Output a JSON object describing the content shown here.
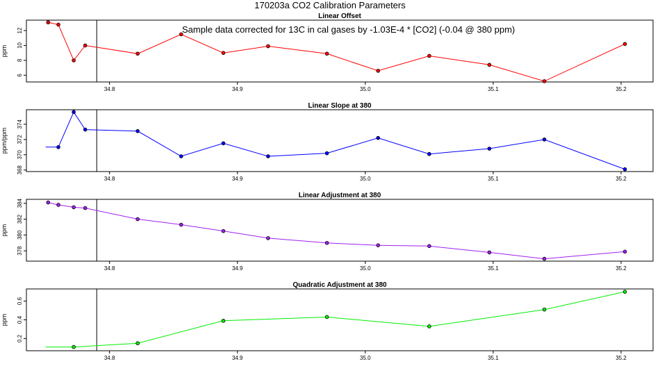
{
  "figure_title": "170203a   CO2 Calibration Parameters",
  "chart_data": [
    {
      "type": "line",
      "title": "Linear Offset",
      "ylabel": "ppm",
      "annotation": "Sample data corrected for 13C in cal gases by -1.03E-4 * [CO2] (-0.04 @ 380 ppm)",
      "color": "#ff0000",
      "xlim": [
        34.735,
        35.225
      ],
      "ylim": [
        5.1,
        13.4
      ],
      "x_ticks": [
        34.8,
        34.9,
        35.0,
        35.1,
        35.2
      ],
      "x_tick_labels": [
        "34.8",
        "34.9",
        "35.0",
        "35.1",
        "35.2"
      ],
      "y_ticks": [
        6,
        8,
        10,
        12
      ],
      "y_tick_labels": [
        "6",
        "8",
        "10",
        "12"
      ],
      "vline": 34.79,
      "x": [
        34.752,
        34.76,
        34.772,
        34.781,
        34.822,
        34.856,
        34.889,
        34.924,
        34.97,
        35.01,
        35.05,
        35.097,
        35.14,
        35.203
      ],
      "y": [
        13.1,
        12.8,
        8.0,
        10.0,
        8.9,
        11.5,
        9.0,
        9.9,
        8.9,
        6.6,
        8.6,
        7.4,
        5.2,
        10.2
      ],
      "marker": [
        true,
        true,
        true,
        true,
        true,
        true,
        true,
        true,
        true,
        true,
        true,
        true,
        true,
        true
      ]
    },
    {
      "type": "line",
      "title": "Linear Slope at 380",
      "ylabel": "ppm/ppm",
      "color": "#0000ff",
      "xlim": [
        34.735,
        35.225
      ],
      "ylim": [
        367.8,
        375.9
      ],
      "x_ticks": [
        34.8,
        34.9,
        35.0,
        35.1,
        35.2
      ],
      "x_tick_labels": [
        "34.8",
        "34.9",
        "35.0",
        "35.1",
        "35.2"
      ],
      "y_ticks": [
        368,
        370,
        372,
        374
      ],
      "y_tick_labels": [
        "368",
        "370",
        "372",
        "374"
      ],
      "vline": 34.79,
      "x": [
        34.75,
        34.76,
        34.772,
        34.781,
        34.822,
        34.856,
        34.889,
        34.924,
        34.97,
        35.01,
        35.05,
        35.097,
        35.14,
        35.203
      ],
      "y": [
        371.0,
        371.0,
        375.6,
        373.3,
        373.1,
        369.8,
        371.5,
        369.8,
        370.2,
        372.2,
        370.1,
        370.8,
        372.0,
        368.1
      ],
      "marker": [
        false,
        true,
        true,
        true,
        true,
        true,
        true,
        true,
        true,
        true,
        true,
        true,
        true,
        true
      ]
    },
    {
      "type": "line",
      "title": "Linear Adjustment at 380",
      "ylabel": "ppm",
      "color": "#a020f0",
      "xlim": [
        34.735,
        35.225
      ],
      "ylim": [
        376.7,
        384.5
      ],
      "x_ticks": [
        34.8,
        34.9,
        35.0,
        35.1,
        35.2
      ],
      "x_tick_labels": [
        "34.8",
        "34.9",
        "35.0",
        "35.1",
        "35.2"
      ],
      "y_ticks": [
        378,
        380,
        382,
        384
      ],
      "y_tick_labels": [
        "378",
        "380",
        "382",
        "384"
      ],
      "vline": 34.79,
      "x": [
        34.752,
        34.76,
        34.772,
        34.781,
        34.822,
        34.856,
        34.889,
        34.924,
        34.97,
        35.01,
        35.05,
        35.097,
        35.14,
        35.203
      ],
      "y": [
        384.1,
        383.8,
        383.5,
        383.4,
        382.0,
        381.3,
        380.5,
        379.6,
        379.0,
        378.7,
        378.6,
        377.8,
        377.0,
        377.9
      ],
      "marker": [
        true,
        true,
        true,
        true,
        true,
        true,
        true,
        true,
        true,
        true,
        true,
        true,
        true,
        true
      ]
    },
    {
      "type": "line",
      "title": "Quadratic Adjustment at 380",
      "ylabel": "ppm",
      "color": "#00ee00",
      "xlim": [
        34.735,
        35.225
      ],
      "ylim": [
        0.07,
        0.73
      ],
      "x_ticks": [
        34.8,
        34.9,
        35.0,
        35.1,
        35.2
      ],
      "x_tick_labels": [
        "34.8",
        "34.9",
        "35.0",
        "35.1",
        "35.2"
      ],
      "y_ticks": [
        0.2,
        0.4,
        0.6
      ],
      "y_tick_labels": [
        "0.2",
        "0.4",
        "0.6"
      ],
      "vline": 34.79,
      "x": [
        34.75,
        34.772,
        34.822,
        34.889,
        34.97,
        35.05,
        35.14,
        35.203
      ],
      "y": [
        0.11,
        0.11,
        0.15,
        0.39,
        0.43,
        0.33,
        0.51,
        0.7
      ],
      "marker": [
        false,
        true,
        true,
        true,
        true,
        true,
        true,
        true
      ]
    }
  ]
}
